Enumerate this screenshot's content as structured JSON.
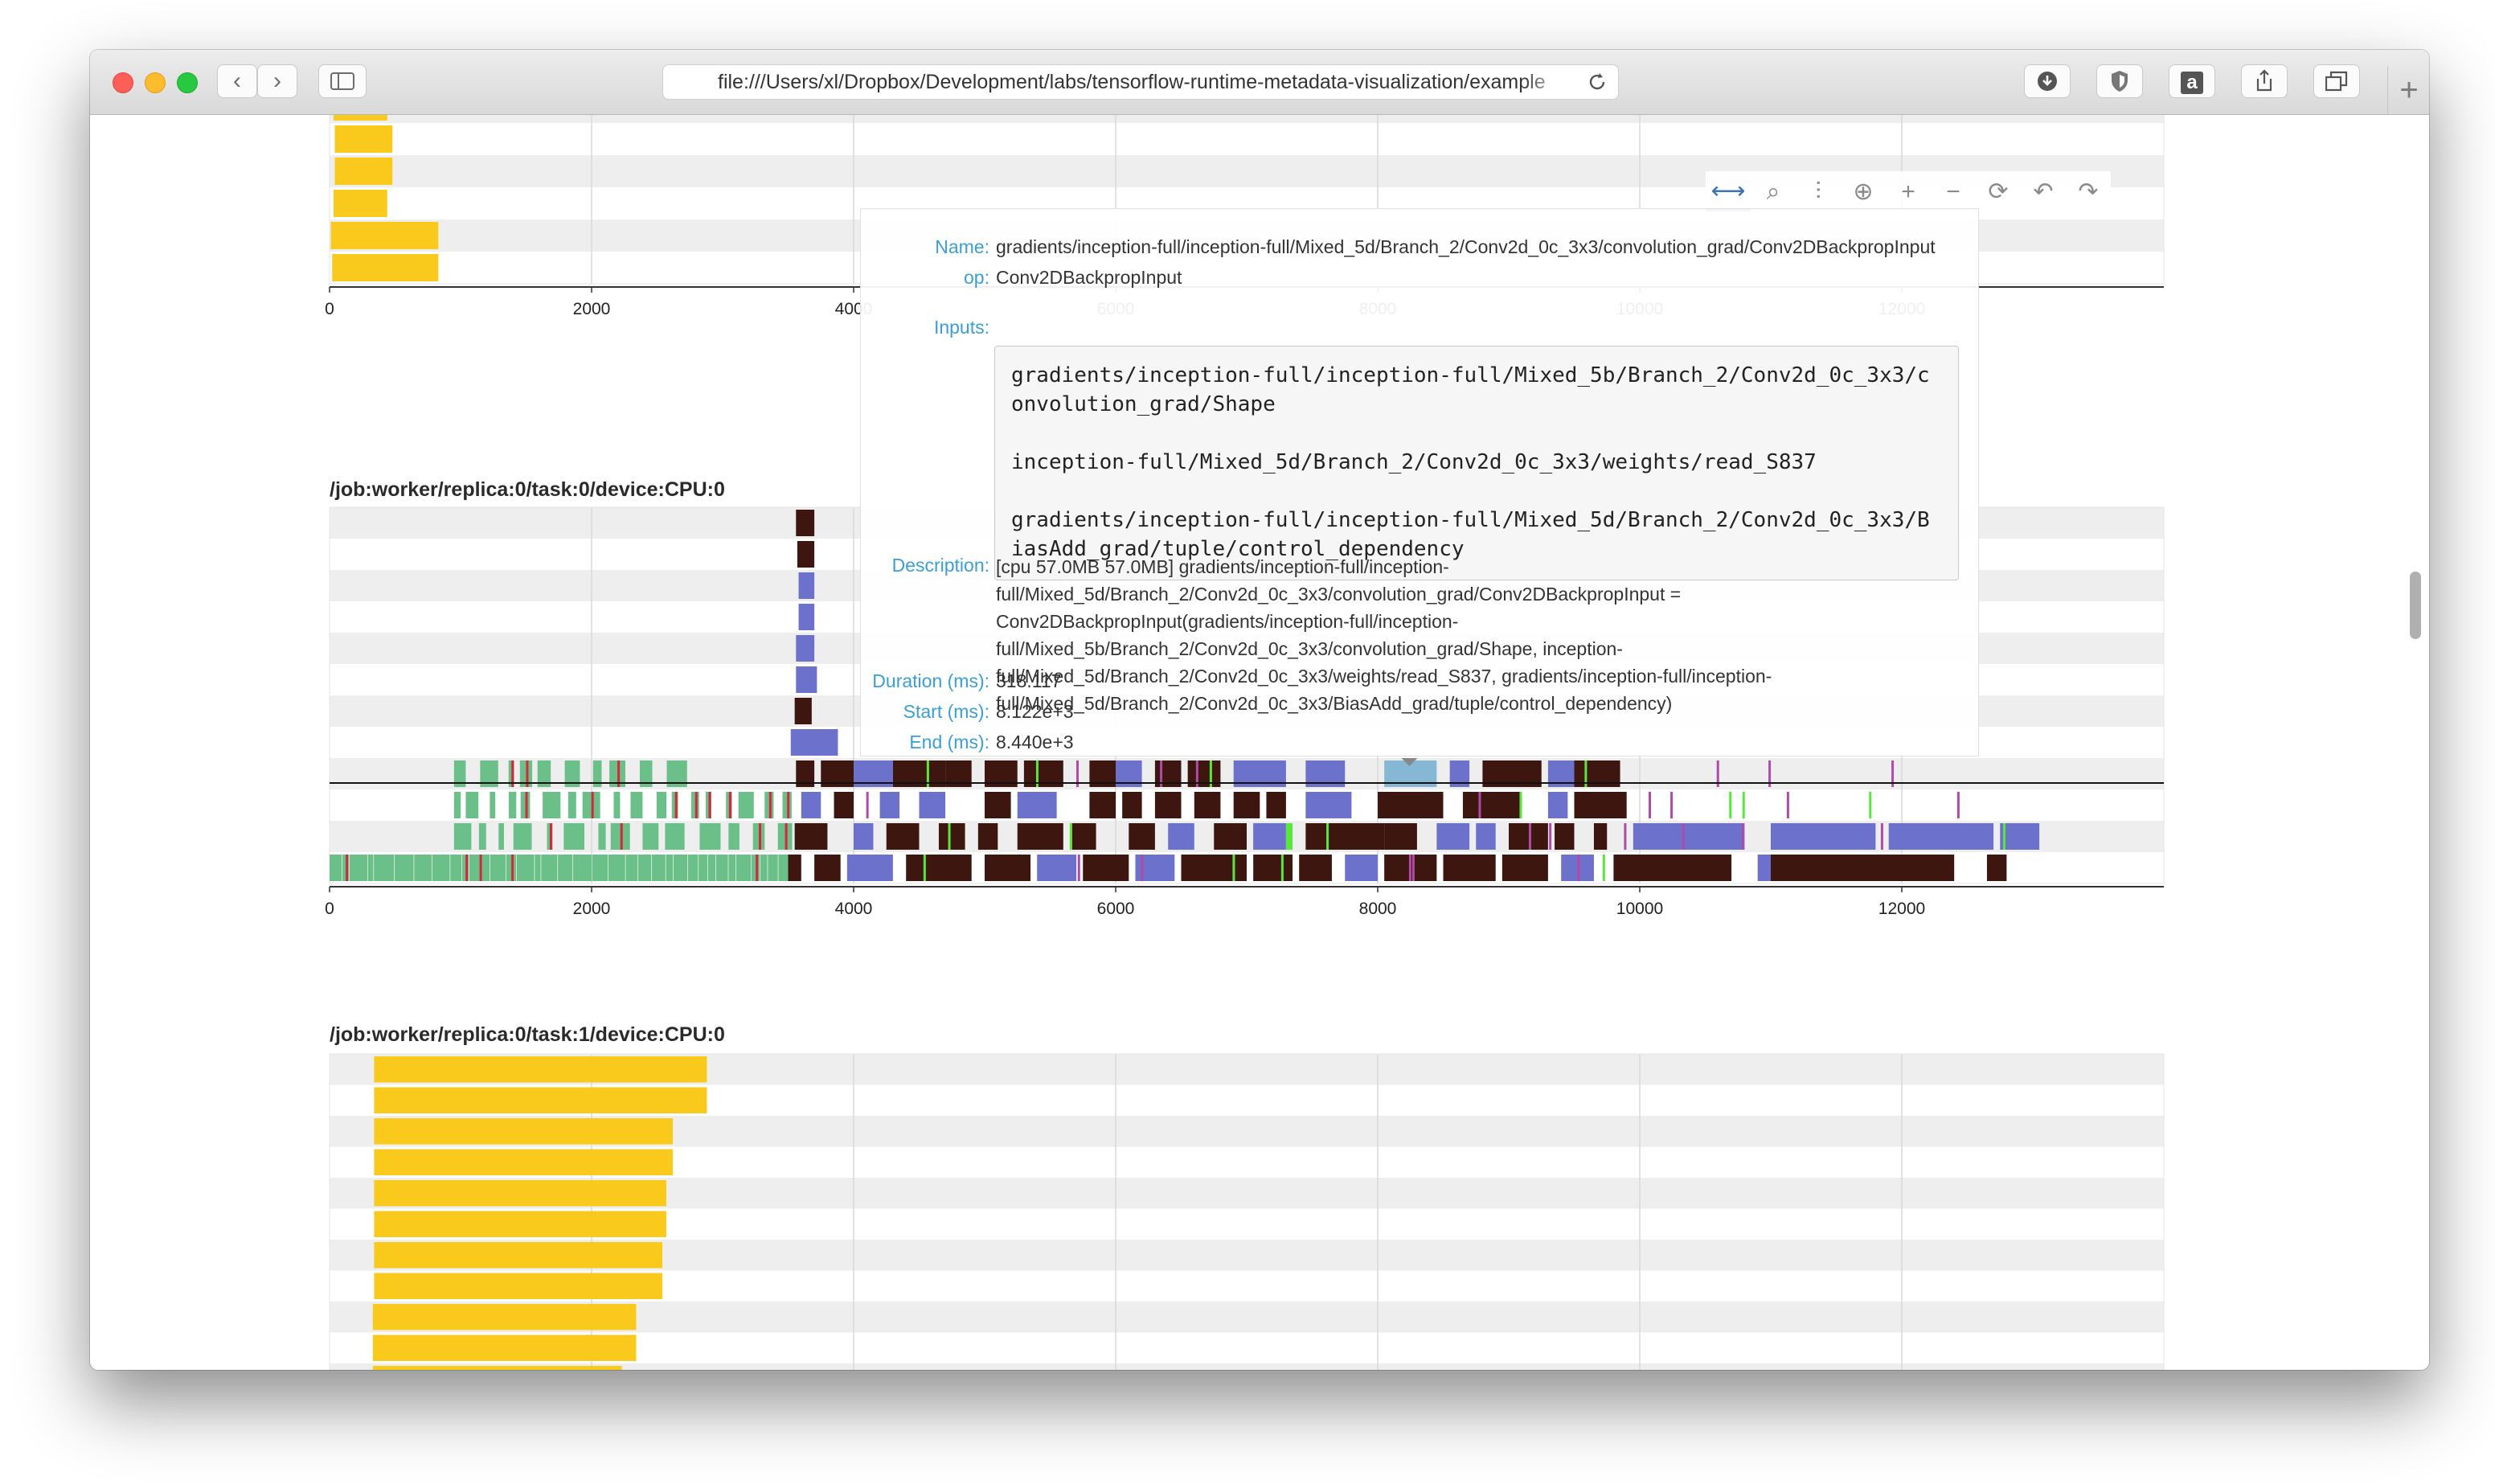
{
  "browser": {
    "url": "file:///Users/xl/Dropbox/Development/labs/tensorflow-runtime-metadata-visualization/example",
    "back_icon": "chevron-left-icon",
    "forward_icon": "chevron-right-icon",
    "sidebar_icon": "sidebar-icon",
    "reload_icon": "reload-icon",
    "download_icon": "download-icon",
    "shield_icon": "shield-icon",
    "amazon_icon": "amazon-icon",
    "share_icon": "share-icon",
    "tabs_icon": "tabs-icon",
    "new_tab_icon": "plus-icon",
    "amazon_glyph": "a",
    "new_tab_glyph": "+"
  },
  "modebar": {
    "buttons": [
      {
        "name": "pan-icon",
        "glyph": "⟷"
      },
      {
        "name": "zoom-icon",
        "glyph": "⌕"
      },
      {
        "name": "compare-hover-icon",
        "glyph": "⫶"
      },
      {
        "name": "closest-hover-icon",
        "glyph": "⊕"
      },
      {
        "name": "zoom-in-icon",
        "glyph": "+"
      },
      {
        "name": "zoom-out-icon",
        "glyph": "−"
      },
      {
        "name": "autoscale-icon",
        "glyph": "⟳"
      },
      {
        "name": "undo-icon",
        "glyph": "↶"
      },
      {
        "name": "redo-icon",
        "glyph": "↷"
      }
    ]
  },
  "hover": {
    "name_key": "Name:",
    "name": "gradients/inception-full/inception-full/Mixed_5d/Branch_2/Conv2d_0c_3x3/convolution_grad/Conv2DBackpropInput",
    "op_key": "op:",
    "op": "Conv2DBackpropInput",
    "inputs_key": "Inputs:",
    "inputs": [
      "gradients/inception-full/inception-full/Mixed_5b/Branch_2/Conv2d_0c_3x3/convolution_grad/Shape",
      "inception-full/Mixed_5d/Branch_2/Conv2d_0c_3x3/weights/read_S837",
      "gradients/inception-full/inception-full/Mixed_5d/Branch_2/Conv2d_0c_3x3/BiasAdd_grad/tuple/control_dependency"
    ],
    "description_key": "Description:",
    "description": "[cpu 57.0MB 57.0MB] gradients/inception-full/inception-full/Mixed_5d/Branch_2/Conv2d_0c_3x3/convolution_grad/Conv2DBackpropInput = Conv2DBackpropInput(gradients/inception-full/inception-full/Mixed_5b/Branch_2/Conv2d_0c_3x3/convolution_grad/Shape, inception-full/Mixed_5d/Branch_2/Conv2d_0c_3x3/weights/read_S837, gradients/inception-full/inception-full/Mixed_5d/Branch_2/Conv2d_0c_3x3/BiasAdd_grad/tuple/control_dependency)",
    "duration_key": "Duration (ms):",
    "duration": "318.117",
    "start_key": "Start (ms):",
    "start": "8.122e+3",
    "end_key": "End (ms):",
    "end": "8.440e+3"
  },
  "colors": {
    "yellow": "#f9c91c",
    "green": "#6bbf88",
    "red": "#d7263d",
    "dark_brown": "#3d1610",
    "slate_blue": "#6c72cc",
    "magenta": "#b04aa8",
    "lime": "#57e83b",
    "light_blue": "#86b8d6",
    "stripe": "#eeeeee",
    "grid": "#d9d9d9",
    "hover_key": "#3a9fd6"
  },
  "chart_data": [
    {
      "type": "bar",
      "orientation": "horizontal",
      "title": "",
      "ylabel": "",
      "xlim": [
        0,
        14000
      ],
      "x_ticks": [
        "0",
        "2000",
        "4000",
        "6000",
        "8000",
        "10000",
        "12000"
      ],
      "grid": true,
      "series": [
        {
          "color": "yellow",
          "bars": [
            [
              30,
              440
            ],
            [
              40,
              480
            ],
            [
              40,
              480
            ],
            [
              30,
              440
            ],
            [
              10,
              830
            ],
            [
              20,
              830
            ]
          ]
        }
      ]
    },
    {
      "type": "bar",
      "orientation": "horizontal",
      "title": "/job:worker/replica:0/task:0/device:CPU:0",
      "xlim": [
        0,
        14000
      ],
      "x_ticks": [
        "0",
        "2000",
        "4000",
        "6000",
        "8000",
        "10000",
        "12000"
      ],
      "grid": true,
      "series": [
        {
          "color": "dark_brown",
          "bars": [
            [
              3550,
              3680
            ],
            [
              3560,
              3670
            ],
            [
              3500,
              3650
            ]
          ]
        },
        {
          "color": "slate_blue",
          "bars": [
            [
              3570,
              3700
            ],
            [
              3580,
              3700
            ],
            [
              3560,
              3700
            ],
            [
              3560,
              3720
            ],
            [
              3520,
              3880
            ]
          ]
        }
      ],
      "lanes": [
        {
          "segments": [
            [
              3560,
              3700,
              "dark_brown"
            ],
            [
              3750,
              4000,
              "dark_brown"
            ],
            [
              4000,
              4300,
              "slate_blue"
            ],
            [
              4300,
              4700,
              "dark_brown"
            ],
            [
              4700,
              4900,
              "dark_brown"
            ],
            [
              5000,
              5250,
              "dark_brown"
            ],
            [
              5300,
              5600,
              "dark_brown"
            ],
            [
              5800,
              6000,
              "dark_brown"
            ],
            [
              6000,
              6200,
              "slate_blue"
            ],
            [
              6300,
              6500,
              "dark_brown"
            ],
            [
              6550,
              6800,
              "dark_brown"
            ],
            [
              6900,
              7300,
              "slate_blue"
            ],
            [
              7450,
              7750,
              "slate_blue"
            ],
            [
              8050,
              8450,
              "light_blue"
            ],
            [
              8550,
              8700,
              "slate_blue"
            ],
            [
              8800,
              9250,
              "dark_brown"
            ],
            [
              9300,
              9500,
              "slate_blue"
            ],
            [
              9500,
              9850,
              "dark_brown"
            ]
          ]
        },
        {
          "segments": [
            [
              3600,
              3750,
              "slate_blue"
            ],
            [
              3850,
              4000,
              "dark_brown"
            ],
            [
              4200,
              4350,
              "slate_blue"
            ],
            [
              4500,
              4700,
              "slate_blue"
            ],
            [
              5000,
              5200,
              "dark_brown"
            ],
            [
              5250,
              5550,
              "slate_blue"
            ],
            [
              5800,
              6000,
              "dark_brown"
            ],
            [
              6050,
              6200,
              "dark_brown"
            ],
            [
              6300,
              6500,
              "dark_brown"
            ],
            [
              6600,
              6800,
              "dark_brown"
            ],
            [
              6900,
              7100,
              "dark_brown"
            ],
            [
              7150,
              7300,
              "dark_brown"
            ],
            [
              7450,
              7800,
              "slate_blue"
            ],
            [
              8000,
              8500,
              "dark_brown"
            ],
            [
              8650,
              9100,
              "dark_brown"
            ],
            [
              9300,
              9450,
              "slate_blue"
            ],
            [
              9500,
              9900,
              "dark_brown"
            ]
          ]
        },
        {
          "segments": [
            [
              3550,
              3800,
              "dark_brown"
            ],
            [
              4000,
              4150,
              "slate_blue"
            ],
            [
              4250,
              4500,
              "dark_brown"
            ],
            [
              4650,
              4850,
              "dark_brown"
            ],
            [
              4950,
              5100,
              "dark_brown"
            ],
            [
              5250,
              5600,
              "dark_brown"
            ],
            [
              5650,
              5850,
              "dark_brown"
            ],
            [
              6100,
              6300,
              "dark_brown"
            ],
            [
              6400,
              6600,
              "slate_blue"
            ],
            [
              6750,
              7000,
              "dark_brown"
            ],
            [
              7050,
              7300,
              "slate_blue"
            ],
            [
              7300,
              7350,
              "lime"
            ],
            [
              7450,
              8050,
              "dark_brown"
            ],
            [
              8050,
              8300,
              "dark_brown"
            ],
            [
              8450,
              8700,
              "slate_blue"
            ],
            [
              8750,
              8900,
              "slate_blue"
            ],
            [
              9000,
              9300,
              "dark_brown"
            ],
            [
              9350,
              9500,
              "dark_brown"
            ],
            [
              9650,
              9750,
              "dark_brown"
            ],
            [
              9950,
              10800,
              "slate_blue"
            ],
            [
              11000,
              11800,
              "slate_blue"
            ],
            [
              11900,
              12700,
              "slate_blue"
            ],
            [
              12750,
              13050,
              "slate_blue"
            ]
          ]
        },
        {
          "segments": [
            [
              3500,
              3600,
              "dark_brown"
            ],
            [
              3700,
              3900,
              "dark_brown"
            ],
            [
              3950,
              4300,
              "slate_blue"
            ],
            [
              4400,
              4900,
              "dark_brown"
            ],
            [
              5000,
              5350,
              "dark_brown"
            ],
            [
              5400,
              5700,
              "slate_blue"
            ],
            [
              5750,
              6100,
              "dark_brown"
            ],
            [
              6150,
              6450,
              "slate_blue"
            ],
            [
              6500,
              7000,
              "dark_brown"
            ],
            [
              7050,
              7350,
              "dark_brown"
            ],
            [
              7400,
              7650,
              "dark_brown"
            ],
            [
              7750,
              8000,
              "slate_blue"
            ],
            [
              8050,
              8450,
              "dark_brown"
            ],
            [
              8500,
              8900,
              "dark_brown"
            ],
            [
              8950,
              9300,
              "dark_brown"
            ],
            [
              9400,
              9650,
              "slate_blue"
            ],
            [
              9800,
              10700,
              "dark_brown"
            ],
            [
              10900,
              11000,
              "slate_blue"
            ],
            [
              11000,
              12400,
              "dark_brown"
            ],
            [
              12650,
              12800,
              "dark_brown"
            ]
          ]
        }
      ]
    },
    {
      "type": "bar",
      "orientation": "horizontal",
      "title": "/job:worker/replica:0/task:1/device:CPU:0",
      "xlim": [
        0,
        14000
      ],
      "grid": true,
      "series": [
        {
          "color": "yellow",
          "bars": [
            [
              340,
              2880
            ],
            [
              340,
              2880
            ],
            [
              340,
              2620
            ],
            [
              340,
              2620
            ],
            [
              340,
              2570
            ],
            [
              340,
              2570
            ],
            [
              340,
              2540
            ],
            [
              340,
              2540
            ],
            [
              330,
              2340
            ],
            [
              330,
              2340
            ],
            [
              330,
              2230
            ],
            [
              330,
              2230
            ]
          ]
        }
      ]
    }
  ]
}
